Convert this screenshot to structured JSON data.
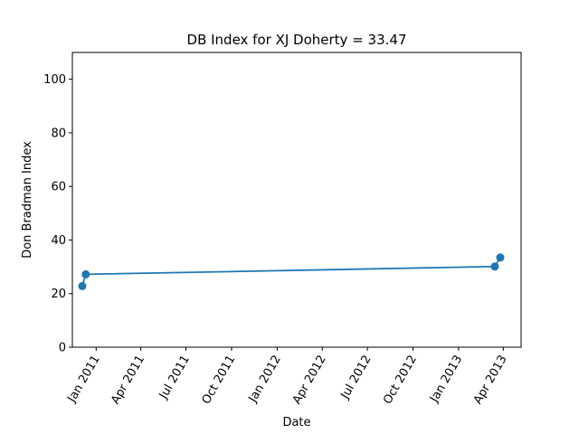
{
  "chart_data": {
    "type": "line",
    "title": "DB Index for XJ Doherty = 33.47",
    "xlabel": "Date",
    "ylabel": "Don Bradman Index",
    "xlim": [
      "2010-11-14",
      "2013-05-07"
    ],
    "ylim": [
      0,
      110
    ],
    "x_ticks": [
      "2011-01-01",
      "2011-04-01",
      "2011-07-01",
      "2011-10-01",
      "2012-01-01",
      "2012-04-01",
      "2012-07-01",
      "2012-10-01",
      "2013-01-01",
      "2013-04-01"
    ],
    "x_tick_labels": [
      "Jan 2011",
      "Apr 2011",
      "Jul 2011",
      "Oct 2011",
      "Jan 2012",
      "Apr 2012",
      "Jul 2012",
      "Oct 2012",
      "Jan 2013",
      "Apr 2013"
    ],
    "y_ticks": [
      0,
      20,
      40,
      60,
      80,
      100
    ],
    "y_tick_labels": [
      "0",
      "20",
      "40",
      "60",
      "80",
      "100"
    ],
    "series": [
      {
        "color": "#1f77b4",
        "marker": "circle",
        "x": [
          "2010-12-04",
          "2010-12-11",
          "2013-03-15",
          "2013-03-26"
        ],
        "y": [
          22.8,
          27.2,
          30.1,
          33.47
        ]
      }
    ],
    "grid": false,
    "legend": "none"
  }
}
